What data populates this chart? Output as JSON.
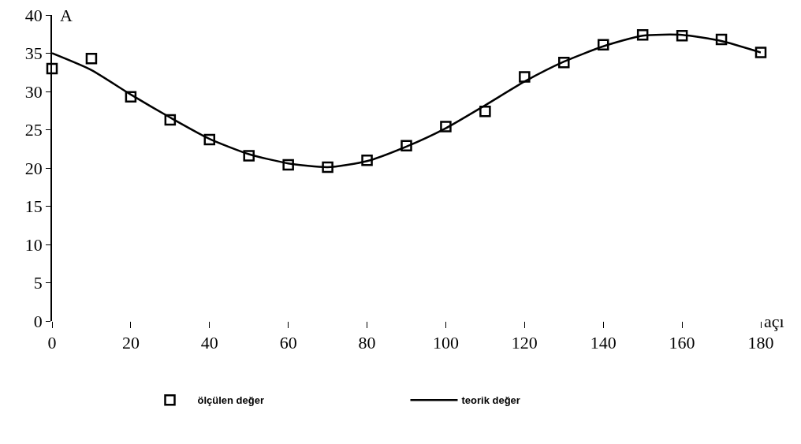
{
  "chart_data": {
    "type": "scatter",
    "xlabel": "açı",
    "ylabel": "A",
    "x": [
      0,
      10,
      20,
      30,
      40,
      50,
      60,
      70,
      80,
      90,
      100,
      110,
      120,
      130,
      140,
      150,
      160,
      170,
      180
    ],
    "series": [
      {
        "name": "ölçülen değer",
        "color": "#000000",
        "marker": "square",
        "values": [
          33.0,
          34.3,
          29.3,
          26.3,
          23.7,
          21.6,
          20.4,
          20.1,
          21.0,
          22.9,
          25.4,
          27.4,
          31.9,
          33.8,
          36.1,
          37.4,
          37.3,
          36.8,
          35.1
        ]
      },
      {
        "name": "teorik değer",
        "type": "line",
        "color": "#000000",
        "line_style": "solid",
        "values": [
          35.0,
          32.8,
          29.6,
          26.6,
          23.8,
          21.8,
          20.6,
          20.1,
          20.9,
          22.8,
          25.2,
          28.2,
          31.3,
          33.9,
          35.9,
          37.3,
          37.4,
          36.6,
          35.1
        ]
      }
    ],
    "xlim": [
      0,
      180
    ],
    "xticks": [
      0,
      20,
      40,
      60,
      80,
      100,
      120,
      140,
      160,
      180
    ],
    "ylim": [
      0,
      40
    ],
    "yticks": [
      0,
      5,
      10,
      15,
      20,
      25,
      30,
      35,
      40
    ],
    "grid": false,
    "legend": "bottom"
  }
}
